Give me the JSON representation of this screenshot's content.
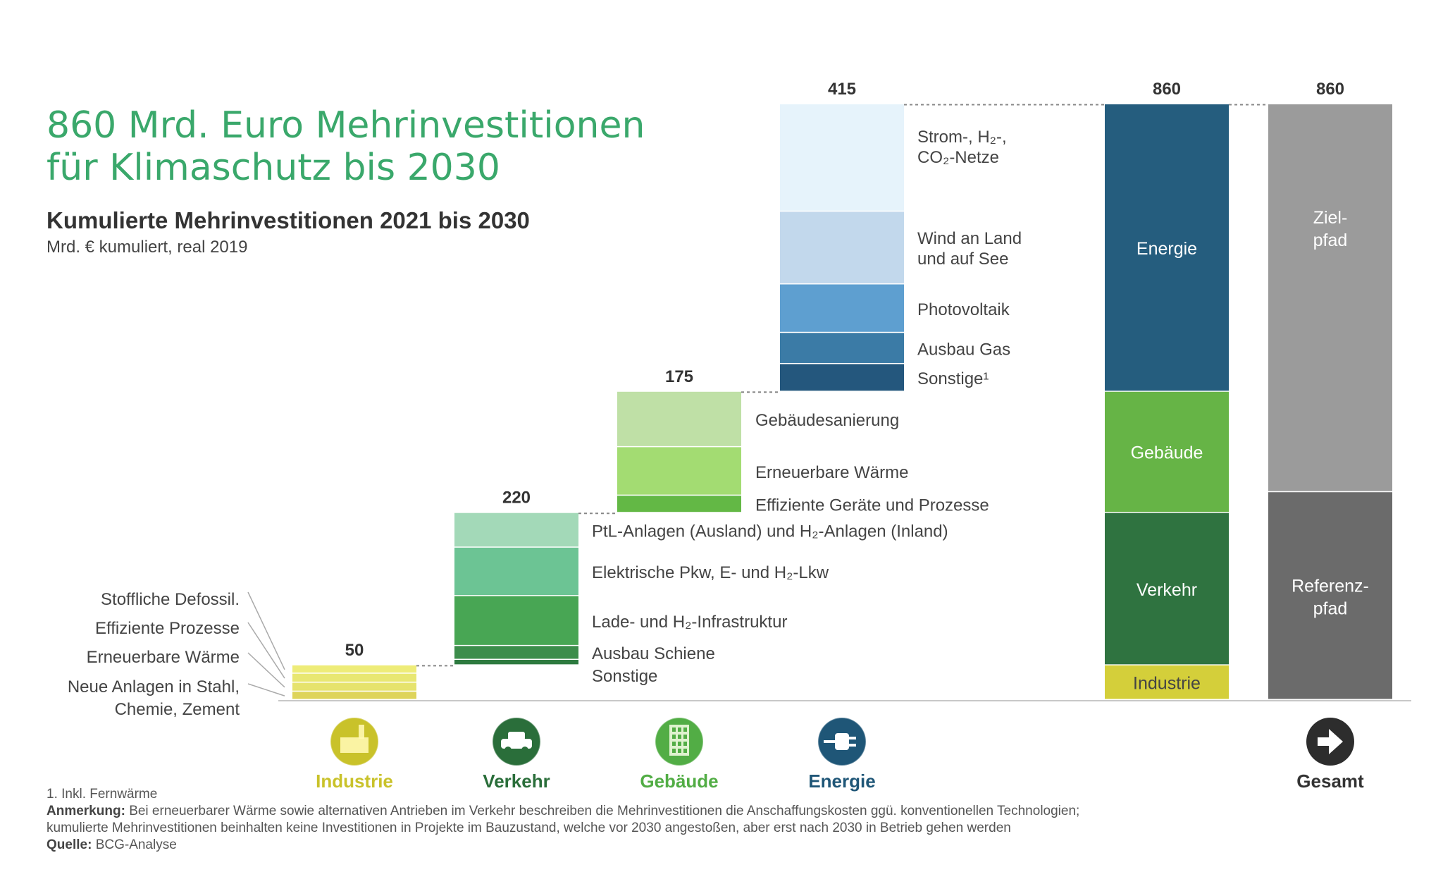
{
  "headline": {
    "line1": "860 Mrd. Euro Mehrinvestitionen",
    "line2": "für Klimaschutz bis 2030"
  },
  "subtitle": "Kumulierte Mehrinvestitionen 2021 bis 2030",
  "unit": "Mrd. € kumuliert, real 2019",
  "chart_data": {
    "type": "bar",
    "subtype": "waterfall-stacked",
    "categories": [
      "Industrie",
      "Verkehr",
      "Gebäude",
      "Energie",
      "Gesamt"
    ],
    "totals": [
      50,
      220,
      175,
      415,
      860,
      860
    ],
    "total_labels": [
      "50",
      "220",
      "175",
      "415",
      "860",
      "860"
    ],
    "colors": {
      "Industrie": "#c9c22a",
      "Verkehr": "#2a6e3a",
      "Gebäude": "#52ad45",
      "Energie": "#1f5677",
      "Gesamt": "#555555"
    },
    "steps": [
      {
        "category": "Industrie",
        "total": 50,
        "segments": [
          {
            "name": "Neue Anlagen in Stahl,\nChemie, Zement",
            "value": 12,
            "color": "#ded45a"
          },
          {
            "name": "Erneuerbare Wärme",
            "value": 13,
            "color": "#e6e36d"
          },
          {
            "name": "Effiziente Prozesse",
            "value": 13,
            "color": "#e8e772"
          },
          {
            "name": "Stoffliche Defossil.",
            "value": 12,
            "color": "#eeec78"
          }
        ]
      },
      {
        "category": "Verkehr",
        "total": 220,
        "segments": [
          {
            "name": "Sonstige",
            "value": 8,
            "color": "#2d7a3f"
          },
          {
            "name": "Ausbau Schiene",
            "value": 20,
            "color": "#3c8d4b"
          },
          {
            "name": "Lade- und H₂-Infrastruktur",
            "value": 72,
            "color": "#48a654"
          },
          {
            "name": "Elektrische Pkw, E- und H₂-Lkw",
            "value": 70,
            "color": "#6cc494"
          },
          {
            "name": "PtL-Anlagen (Ausland) und H₂-Anlagen (Inland)",
            "value": 50,
            "color": "#a3d9b8"
          }
        ]
      },
      {
        "category": "Gebäude",
        "total": 175,
        "segments": [
          {
            "name": "Effiziente Geräte und Prozesse",
            "value": 25,
            "color": "#63b845"
          },
          {
            "name": "Erneuerbare Wärme",
            "value": 70,
            "color": "#a3dc72"
          },
          {
            "name": "Gebäudesanierung",
            "value": 80,
            "color": "#bfe0a6"
          }
        ]
      },
      {
        "category": "Energie",
        "total": 415,
        "segments": [
          {
            "name": "Sonstige¹",
            "value": 40,
            "color": "#24577d"
          },
          {
            "name": "Ausbau Gas",
            "value": 45,
            "color": "#3b7ba6"
          },
          {
            "name": "Photovoltaik",
            "value": 70,
            "color": "#5e9fd0"
          },
          {
            "name": "Wind an Land und auf See",
            "value": 105,
            "color": "#c2d8ec"
          },
          {
            "name": "Strom-, H₂-, CO₂-Netze",
            "value": 155,
            "color": "#e6f3fb"
          }
        ]
      }
    ],
    "total_bar": {
      "total": 860,
      "segments": [
        {
          "name": "Industrie",
          "value": 50,
          "color": "#d4cf3a"
        },
        {
          "name": "Verkehr",
          "value": 220,
          "color": "#2f7340"
        },
        {
          "name": "Gebäude",
          "value": 175,
          "color": "#66b446"
        },
        {
          "name": "Energie",
          "value": 415,
          "color": "#255d7e"
        }
      ]
    },
    "path_bar": {
      "total": 860,
      "segments": [
        {
          "name": "Referenz-\npfad",
          "value": 300,
          "color": "#6b6b6b"
        },
        {
          "name": "Ziel-\npfad",
          "value": 560,
          "color": "#9b9b9b"
        }
      ]
    },
    "ylim": [
      0,
      860
    ],
    "icons": [
      {
        "label": "Industrie",
        "icon": "factory-icon",
        "color": "#c9c22a"
      },
      {
        "label": "Verkehr",
        "icon": "car-icon",
        "color": "#2a6e3a"
      },
      {
        "label": "Gebäude",
        "icon": "building-icon",
        "color": "#52ad45"
      },
      {
        "label": "Energie",
        "icon": "plug-icon",
        "color": "#1f5677"
      },
      {
        "label": "Gesamt",
        "icon": "arrow-circle-icon",
        "color": "#333333"
      }
    ]
  },
  "footnotes": {
    "note1": "1. Inkl. Fernwärme",
    "anmerkung_label": "Anmerkung:",
    "anmerkung_text": "Bei erneuerbarer Wärme sowie alternativen Antrieben im Verkehr beschreiben die Mehrinvestitionen die Anschaffungskosten ggü. konventionellen Technologien;",
    "anmerkung_text2": "kumulierte Mehrinvestitionen beinhalten keine Investitionen in Projekte im Bauzustand, welche vor 2030 angestoßen, aber erst nach 2030 in Betrieb gehen werden",
    "quelle_label": "Quelle:",
    "quelle_text": "BCG-Analyse"
  }
}
